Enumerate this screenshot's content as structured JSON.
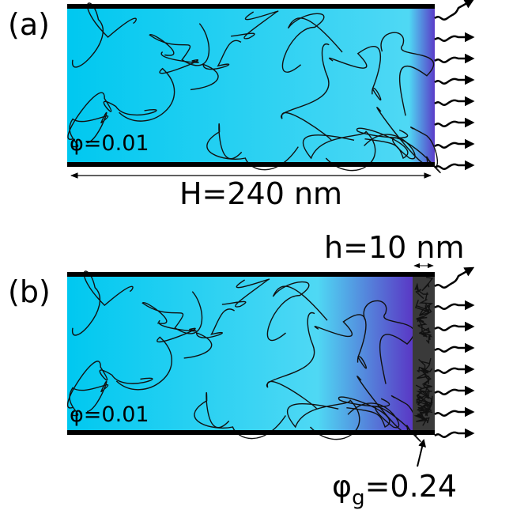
{
  "panel_a": {
    "label": "(a)",
    "phi": "φ=0.01",
    "width_label": "H=240 nm"
  },
  "panel_b": {
    "label": "(b)",
    "phi": "φ=0.01",
    "layer_label": "h=10 nm",
    "grafted": {
      "symbol": "φ",
      "subscript": "g",
      "value": "=0.24"
    }
  }
}
